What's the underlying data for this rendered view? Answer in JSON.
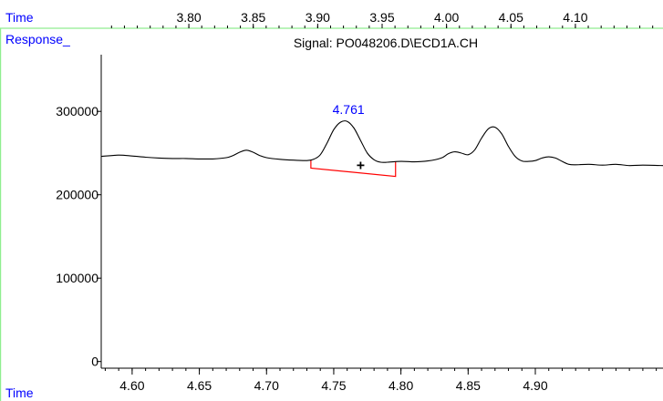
{
  "chart_data": {
    "type": "line",
    "title": "Signal: PO048206.D\\ECD1A.CH",
    "ylabel": "Response_",
    "xlabel": "Time",
    "top_axis_label": "Time",
    "x_range": [
      4.577,
      4.995
    ],
    "y_range": [
      -8000,
      368000
    ],
    "top_x_range": [
      3.732,
      4.168
    ],
    "x_ticks": [
      "4.60",
      "4.65",
      "4.70",
      "4.75",
      "4.80",
      "4.85",
      "4.90"
    ],
    "y_ticks": [
      "0",
      "100000",
      "200000",
      "300000"
    ],
    "top_ticks": [
      "3.80",
      "3.85",
      "3.90",
      "3.95",
      "4.00",
      "4.05",
      "4.10"
    ],
    "series": [
      {
        "x": [
          4.577,
          4.59,
          4.6,
          4.61,
          4.62,
          4.63,
          4.64,
          4.65,
          4.66,
          4.67,
          4.675,
          4.68,
          4.685,
          4.69,
          4.695,
          4.7,
          4.71,
          4.72,
          4.73,
          4.735,
          4.74,
          4.745,
          4.75,
          4.755,
          4.76,
          4.765,
          4.77,
          4.775,
          4.78,
          4.785,
          4.79,
          4.8,
          4.81,
          4.82,
          4.83,
          4.835,
          4.84,
          4.845,
          4.85,
          4.855,
          4.86,
          4.865,
          4.87,
          4.875,
          4.88,
          4.885,
          4.89,
          4.895,
          4.9,
          4.905,
          4.91,
          4.915,
          4.92,
          4.925,
          4.93,
          4.94,
          4.95,
          4.96,
          4.97,
          4.98,
          4.995
        ],
        "y": [
          246000,
          247500,
          246500,
          245000,
          244000,
          243500,
          243500,
          243000,
          243000,
          244500,
          247000,
          251000,
          253500,
          251000,
          247000,
          244500,
          242500,
          241500,
          241000,
          242500,
          248000,
          262000,
          278000,
          287000,
          288000,
          280000,
          265000,
          250000,
          242000,
          239000,
          239000,
          240000,
          239500,
          240500,
          244000,
          249000,
          251500,
          250000,
          248000,
          254000,
          268000,
          279000,
          281000,
          273000,
          258000,
          246000,
          240500,
          240000,
          241000,
          244000,
          245500,
          244000,
          240000,
          236500,
          236000,
          236500,
          235500,
          236500,
          235000,
          235500,
          235000
        ]
      }
    ],
    "peaks": [
      {
        "label": "4.761",
        "x": 4.761,
        "y": 288000
      }
    ],
    "integration_baseline": {
      "x": [
        4.733,
        4.796
      ],
      "y": [
        232000,
        222000
      ],
      "start_y": 241500,
      "end_y": 239500
    },
    "marker": {
      "symbol": "+",
      "x": 4.77,
      "y": 235000
    },
    "colors": {
      "signal": "#000000",
      "axis": "#000000",
      "baseline": "#ff0000",
      "labels": "#0000ff",
      "separator": "#90ee90"
    }
  }
}
